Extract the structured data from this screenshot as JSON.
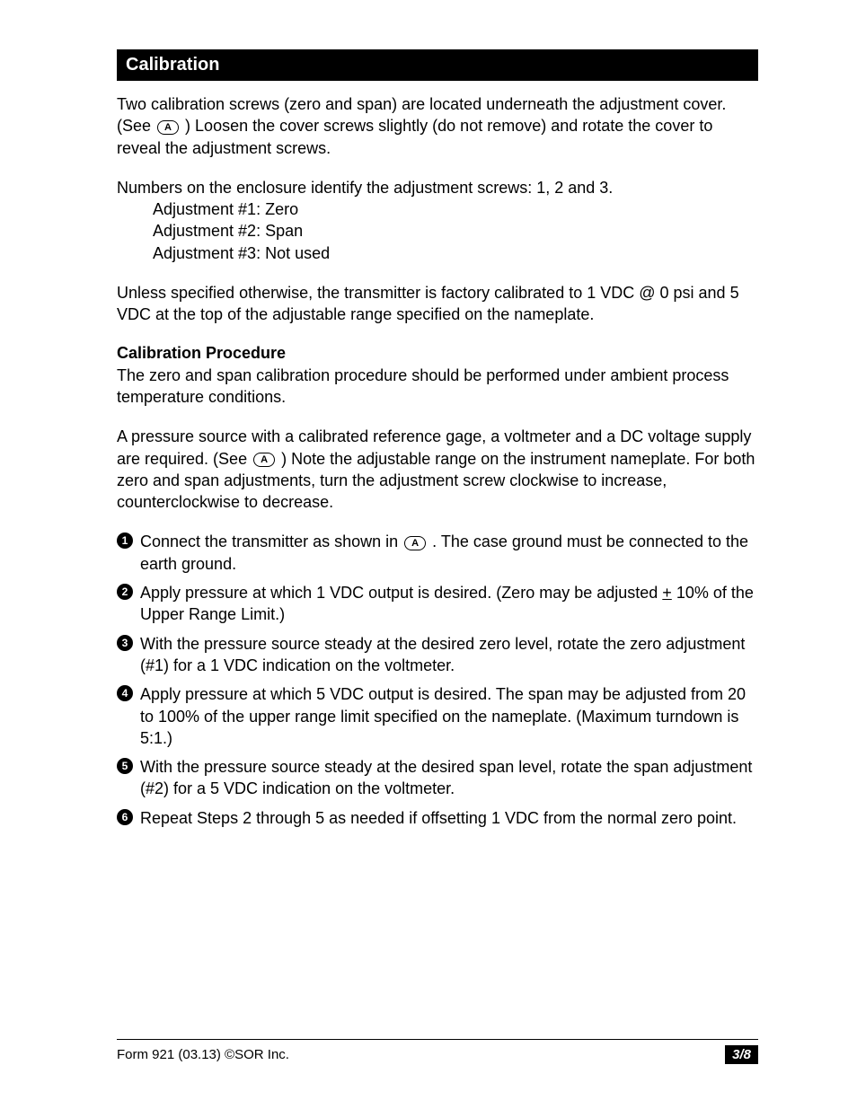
{
  "section": {
    "title": "Calibration"
  },
  "paragraphs": {
    "p1a": "Two calibration screws (zero and span) are located underneath the adjustment cover. (See ",
    "ref1": "A",
    "p1b": ") Loosen the cover screws slightly (do not remove) and rotate the cover to reveal the adjustment screws.",
    "p2_intro": "Numbers on the enclosure identify the adjustment screws: 1, 2 and 3.",
    "p2_l1": "Adjustment #1: Zero",
    "p2_l2": "Adjustment #2: Span",
    "p2_l3": "Adjustment #3: Not used",
    "p3": "Unless specified otherwise, the transmitter is factory calibrated to 1 VDC @ 0 psi and 5 VDC at the top of the adjustable range specified on the nameplate.",
    "subheader": "Calibration Procedure",
    "p4": "The zero and span calibration procedure should be performed under ambient process temperature conditions.",
    "p5a": "A pressure source with a calibrated reference gage, a voltmeter and a DC voltage supply are required. (See ",
    "ref2": "A",
    "p5b": ")  Note the adjustable range on the instrument nameplate. For both zero and span adjustments, turn the adjustment screw clockwise to increase, counterclockwise to decrease."
  },
  "steps": {
    "nums": [
      "1",
      "2",
      "3",
      "4",
      "5",
      "6"
    ],
    "s1a": "Connect the transmitter as shown in ",
    "s1ref": "A",
    "s1b": ". The case ground must be connected to the earth ground.",
    "s2a": "Apply pressure at which 1 VDC output is desired. (Zero may be adjusted ",
    "s2pm": "+",
    "s2b": " 10% of the Upper Range Limit.)",
    "s3": "With the pressure source steady at the desired zero level, rotate the zero adjustment (#1) for a 1 VDC indication on the voltmeter.",
    "s4": "Apply pressure at which 5 VDC output is desired. The span may be adjusted from 20 to 100% of the upper range limit specified on the nameplate. (Maximum turndown is 5:1.)",
    "s5": "With the pressure source steady at the desired span level, rotate the span adjustment (#2) for a 5 VDC indication on the voltmeter.",
    "s6": "Repeat Steps 2 through 5 as needed if offsetting 1 VDC from the normal zero point."
  },
  "footer": {
    "left": "Form 921 (03.13) ©SOR Inc.",
    "page": "3/8"
  },
  "colors": {
    "header_bg": "#000000",
    "header_fg": "#ffffff",
    "text": "#000000",
    "page_bg": "#ffffff"
  }
}
